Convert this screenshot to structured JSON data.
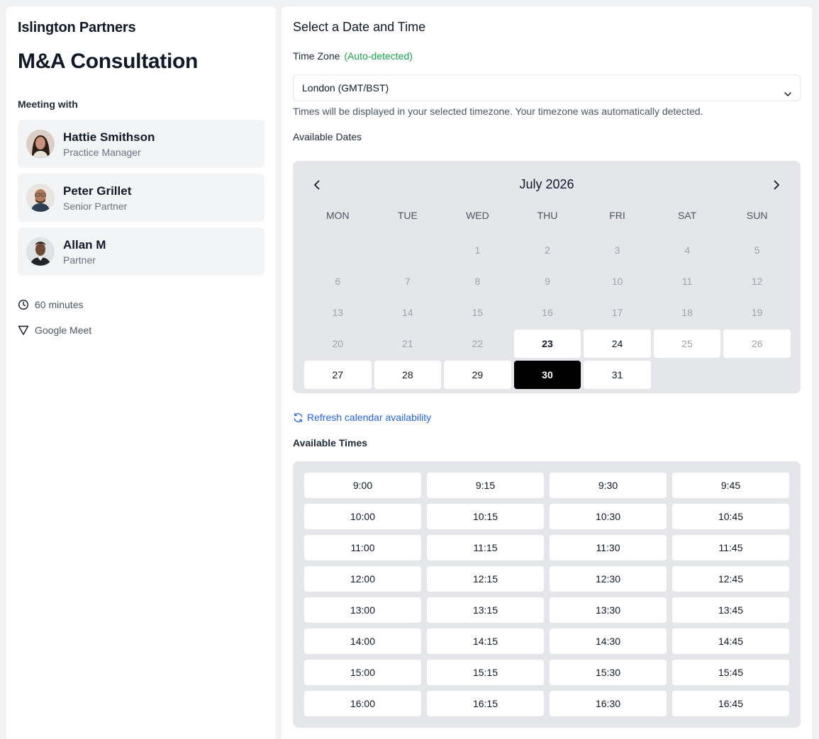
{
  "left": {
    "company": "Islington Partners",
    "event_title": "M&A Consultation",
    "meeting_with_label": "Meeting with",
    "people": [
      {
        "name": "Hattie Smithson",
        "role": "Practice Manager"
      },
      {
        "name": "Peter Grillet",
        "role": "Senior Partner"
      },
      {
        "name": "Allan M",
        "role": "Partner"
      }
    ],
    "duration": "60 minutes",
    "location": "Google Meet"
  },
  "right": {
    "title": "Select a Date and Time",
    "timezone_label": "Time Zone",
    "timezone_auto": "(Auto-detected)",
    "timezone_value": "London (GMT/BST)",
    "timezone_help": "Times will be displayed in your selected timezone. Your timezone was automatically detected.",
    "available_dates_label": "Available Dates",
    "refresh_label": "Refresh calendar availability",
    "available_times_label": "Available Times"
  },
  "calendar": {
    "month": "July 2026",
    "weekdays": [
      "MON",
      "TUE",
      "WED",
      "THU",
      "FRI",
      "SAT",
      "SUN"
    ],
    "days": [
      {
        "label": "",
        "state": "empty"
      },
      {
        "label": "",
        "state": "empty"
      },
      {
        "label": "1",
        "state": "disabled"
      },
      {
        "label": "2",
        "state": "disabled"
      },
      {
        "label": "3",
        "state": "disabled"
      },
      {
        "label": "4",
        "state": "disabled"
      },
      {
        "label": "5",
        "state": "disabled"
      },
      {
        "label": "6",
        "state": "disabled"
      },
      {
        "label": "7",
        "state": "disabled"
      },
      {
        "label": "8",
        "state": "disabled"
      },
      {
        "label": "9",
        "state": "disabled"
      },
      {
        "label": "10",
        "state": "disabled"
      },
      {
        "label": "11",
        "state": "disabled"
      },
      {
        "label": "12",
        "state": "disabled"
      },
      {
        "label": "13",
        "state": "disabled"
      },
      {
        "label": "14",
        "state": "disabled"
      },
      {
        "label": "15",
        "state": "disabled"
      },
      {
        "label": "16",
        "state": "disabled"
      },
      {
        "label": "17",
        "state": "disabled"
      },
      {
        "label": "18",
        "state": "disabled"
      },
      {
        "label": "19",
        "state": "disabled"
      },
      {
        "label": "20",
        "state": "disabled"
      },
      {
        "label": "21",
        "state": "disabled"
      },
      {
        "label": "22",
        "state": "disabled"
      },
      {
        "label": "23",
        "state": "today"
      },
      {
        "label": "24",
        "state": "available"
      },
      {
        "label": "25",
        "state": "unavailable"
      },
      {
        "label": "26",
        "state": "unavailable"
      },
      {
        "label": "27",
        "state": "available"
      },
      {
        "label": "28",
        "state": "available"
      },
      {
        "label": "29",
        "state": "available"
      },
      {
        "label": "30",
        "state": "selected"
      },
      {
        "label": "31",
        "state": "available"
      }
    ]
  },
  "times": [
    "9:00",
    "9:15",
    "9:30",
    "9:45",
    "10:00",
    "10:15",
    "10:30",
    "10:45",
    "11:00",
    "11:15",
    "11:30",
    "11:45",
    "12:00",
    "12:15",
    "12:30",
    "12:45",
    "13:00",
    "13:15",
    "13:30",
    "13:45",
    "14:00",
    "14:15",
    "14:30",
    "14:45",
    "15:00",
    "15:15",
    "15:30",
    "15:45",
    "16:00",
    "16:15",
    "16:30",
    "16:45"
  ],
  "icons": {
    "duration": "clock-icon",
    "location": "video-triangle-icon",
    "refresh": "refresh-icon",
    "timezone_chevron": "chevron-down-icon",
    "prev": "chevron-left-icon",
    "next": "chevron-right-icon"
  },
  "colors": {
    "accent_green": "#16a34a",
    "link_blue": "#2563eb",
    "selected": "#000000",
    "panel_gray": "#e5e6e9"
  }
}
